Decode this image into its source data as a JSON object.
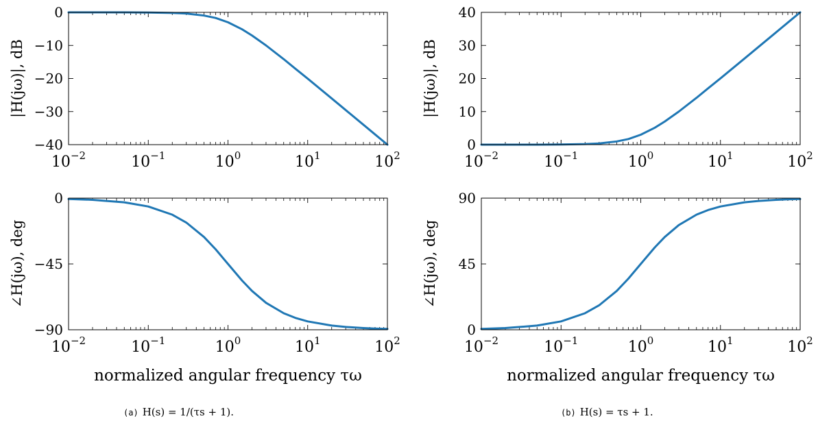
{
  "chart_data": [
    {
      "id": "a-mag",
      "type": "line",
      "x_scale": "log",
      "xlim": [
        0.01,
        100
      ],
      "ylim": [
        -40,
        0
      ],
      "xlabel": "",
      "ylabel": "|H(jω)|, dB",
      "grid": false,
      "x_ticks": [
        0.01,
        0.1,
        1,
        10,
        100
      ],
      "x_tick_labels": [
        {
          "base": "10",
          "exp": "−2"
        },
        {
          "base": "10",
          "exp": "−1"
        },
        {
          "base": "10",
          "exp": "0"
        },
        {
          "base": "10",
          "exp": "1"
        },
        {
          "base": "10",
          "exp": "2"
        }
      ],
      "y_ticks": [
        0,
        -10,
        -20,
        -30,
        -40
      ],
      "y_tick_labels": [
        "0",
        "−10",
        "−20",
        "−30",
        "−40"
      ],
      "series": [
        {
          "color": "#1f77b4",
          "x": [
            0.01,
            0.02,
            0.05,
            0.1,
            0.2,
            0.3,
            0.5,
            0.7,
            1,
            1.5,
            2,
            3,
            5,
            7,
            10,
            20,
            30,
            50,
            70,
            100
          ],
          "y": [
            0,
            0,
            -0.01,
            -0.04,
            -0.17,
            -0.37,
            -0.97,
            -1.7,
            -3.01,
            -5.12,
            -6.99,
            -10,
            -14.15,
            -17.03,
            -20.04,
            -26.02,
            -29.55,
            -33.98,
            -36.9,
            -40
          ]
        }
      ]
    },
    {
      "id": "a-phase",
      "type": "line",
      "x_scale": "log",
      "xlim": [
        0.01,
        100
      ],
      "ylim": [
        -90,
        0
      ],
      "xlabel": "normalized angular frequency τω",
      "ylabel": "∠H(jω), deg",
      "grid": false,
      "x_ticks": [
        0.01,
        0.1,
        1,
        10,
        100
      ],
      "x_tick_labels": [
        {
          "base": "10",
          "exp": "−2"
        },
        {
          "base": "10",
          "exp": "−1"
        },
        {
          "base": "10",
          "exp": "0"
        },
        {
          "base": "10",
          "exp": "1"
        },
        {
          "base": "10",
          "exp": "2"
        }
      ],
      "y_ticks": [
        0,
        -45,
        -90
      ],
      "y_tick_labels": [
        "0",
        "−45",
        "−90"
      ],
      "series": [
        {
          "color": "#1f77b4",
          "x": [
            0.01,
            0.02,
            0.05,
            0.1,
            0.2,
            0.3,
            0.5,
            0.7,
            1,
            1.5,
            2,
            3,
            5,
            7,
            10,
            20,
            30,
            50,
            70,
            100
          ],
          "y": [
            -0.57,
            -1.15,
            -2.86,
            -5.71,
            -11.31,
            -16.7,
            -26.57,
            -34.99,
            -45,
            -56.31,
            -63.43,
            -71.57,
            -78.69,
            -81.87,
            -84.29,
            -87.14,
            -88.09,
            -88.85,
            -89.18,
            -89.43
          ]
        }
      ]
    },
    {
      "id": "b-mag",
      "type": "line",
      "x_scale": "log",
      "xlim": [
        0.01,
        100
      ],
      "ylim": [
        0,
        40
      ],
      "xlabel": "",
      "ylabel": "|H(jω)|, dB",
      "grid": false,
      "x_ticks": [
        0.01,
        0.1,
        1,
        10,
        100
      ],
      "x_tick_labels": [
        {
          "base": "10",
          "exp": "−2"
        },
        {
          "base": "10",
          "exp": "−1"
        },
        {
          "base": "10",
          "exp": "0"
        },
        {
          "base": "10",
          "exp": "1"
        },
        {
          "base": "10",
          "exp": "2"
        }
      ],
      "y_ticks": [
        0,
        10,
        20,
        30,
        40
      ],
      "y_tick_labels": [
        "0",
        "10",
        "20",
        "30",
        "40"
      ],
      "series": [
        {
          "color": "#1f77b4",
          "x": [
            0.01,
            0.02,
            0.05,
            0.1,
            0.2,
            0.3,
            0.5,
            0.7,
            1,
            1.5,
            2,
            3,
            5,
            7,
            10,
            20,
            30,
            50,
            70,
            100
          ],
          "y": [
            0,
            0,
            0.01,
            0.04,
            0.17,
            0.37,
            0.97,
            1.7,
            3.01,
            5.12,
            6.99,
            10,
            14.15,
            17.03,
            20.04,
            26.02,
            29.55,
            33.98,
            36.9,
            40
          ]
        }
      ]
    },
    {
      "id": "b-phase",
      "type": "line",
      "x_scale": "log",
      "xlim": [
        0.01,
        100
      ],
      "ylim": [
        0,
        90
      ],
      "xlabel": "normalized angular frequency τω",
      "ylabel": "∠H(jω), deg",
      "grid": false,
      "x_ticks": [
        0.01,
        0.1,
        1,
        10,
        100
      ],
      "x_tick_labels": [
        {
          "base": "10",
          "exp": "−2"
        },
        {
          "base": "10",
          "exp": "−1"
        },
        {
          "base": "10",
          "exp": "0"
        },
        {
          "base": "10",
          "exp": "1"
        },
        {
          "base": "10",
          "exp": "2"
        }
      ],
      "y_ticks": [
        0,
        45,
        90
      ],
      "y_tick_labels": [
        "0",
        "45",
        "90"
      ],
      "series": [
        {
          "color": "#1f77b4",
          "x": [
            0.01,
            0.02,
            0.05,
            0.1,
            0.2,
            0.3,
            0.5,
            0.7,
            1,
            1.5,
            2,
            3,
            5,
            7,
            10,
            20,
            30,
            50,
            70,
            100
          ],
          "y": [
            0.57,
            1.15,
            2.86,
            5.71,
            11.31,
            16.7,
            26.57,
            34.99,
            45,
            56.31,
            63.43,
            71.57,
            78.69,
            81.87,
            84.29,
            87.14,
            88.09,
            88.85,
            89.18,
            89.43
          ]
        }
      ]
    }
  ],
  "captions": {
    "a": {
      "tag": "(a)",
      "text": "H(s) = 1/(τs + 1)."
    },
    "b": {
      "tag": "(b)",
      "text": "H(s) = τs + 1."
    }
  }
}
